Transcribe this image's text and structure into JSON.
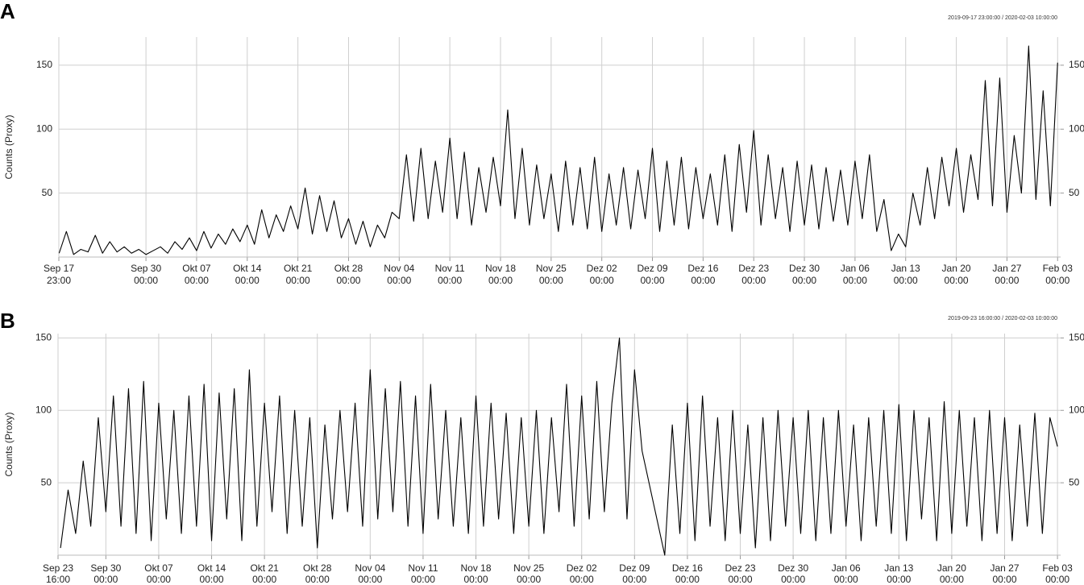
{
  "chart_data": [
    {
      "type": "line",
      "panel": "A",
      "annotation": "2019-09-17 23:00:00 / 2020-02-03 10:00:00",
      "ylabel": "Counts (Proxy)",
      "grid": true,
      "color": "#000000",
      "xlim": [
        "2019-09-17 23:00",
        "2020-02-03 10:00"
      ],
      "xticks": [
        {
          "value": "2019-09-17 23:00",
          "label": [
            "Sep 17",
            "23:00"
          ]
        },
        {
          "value": "2019-09-30 00:00",
          "label": [
            "Sep 30",
            "00:00"
          ]
        },
        {
          "value": "2019-10-07 00:00",
          "label": [
            "Okt 07",
            "00:00"
          ]
        },
        {
          "value": "2019-10-14 00:00",
          "label": [
            "Okt 14",
            "00:00"
          ]
        },
        {
          "value": "2019-10-21 00:00",
          "label": [
            "Okt 21",
            "00:00"
          ]
        },
        {
          "value": "2019-10-28 00:00",
          "label": [
            "Okt 28",
            "00:00"
          ]
        },
        {
          "value": "2019-11-04 00:00",
          "label": [
            "Nov 04",
            "00:00"
          ]
        },
        {
          "value": "2019-11-11 00:00",
          "label": [
            "Nov 11",
            "00:00"
          ]
        },
        {
          "value": "2019-11-18 00:00",
          "label": [
            "Nov 18",
            "00:00"
          ]
        },
        {
          "value": "2019-11-25 00:00",
          "label": [
            "Nov 25",
            "00:00"
          ]
        },
        {
          "value": "2019-12-02 00:00",
          "label": [
            "Dez 02",
            "00:00"
          ]
        },
        {
          "value": "2019-12-09 00:00",
          "label": [
            "Dez 09",
            "00:00"
          ]
        },
        {
          "value": "2019-12-16 00:00",
          "label": [
            "Dez 16",
            "00:00"
          ]
        },
        {
          "value": "2019-12-23 00:00",
          "label": [
            "Dez 23",
            "00:00"
          ]
        },
        {
          "value": "2019-12-30 00:00",
          "label": [
            "Dez 30",
            "00:00"
          ]
        },
        {
          "value": "2020-01-06 00:00",
          "label": [
            "Jan 06",
            "00:00"
          ]
        },
        {
          "value": "2020-01-13 00:00",
          "label": [
            "Jan 13",
            "00:00"
          ]
        },
        {
          "value": "2020-01-20 00:00",
          "label": [
            "Jan 20",
            "00:00"
          ]
        },
        {
          "value": "2020-01-27 00:00",
          "label": [
            "Jan 27",
            "00:00"
          ]
        },
        {
          "value": "2020-02-03 00:00",
          "label": [
            "Feb 03",
            "00:00"
          ]
        }
      ],
      "ylim": [
        0,
        172
      ],
      "yticks": [
        50,
        100,
        150
      ],
      "y2lim": [
        0,
        172
      ],
      "y2ticks": [
        50,
        100,
        150
      ],
      "x": [
        "2019-09-18",
        "2019-09-19",
        "2019-09-20",
        "2019-09-21",
        "2019-09-22",
        "2019-09-23",
        "2019-09-24",
        "2019-09-25",
        "2019-09-26",
        "2019-09-27",
        "2019-09-28",
        "2019-09-29",
        "2019-09-30",
        "2019-10-01",
        "2019-10-02",
        "2019-10-03",
        "2019-10-04",
        "2019-10-05",
        "2019-10-06",
        "2019-10-07",
        "2019-10-08",
        "2019-10-09",
        "2019-10-10",
        "2019-10-11",
        "2019-10-12",
        "2019-10-13",
        "2019-10-14",
        "2019-10-15",
        "2019-10-16",
        "2019-10-17",
        "2019-10-18",
        "2019-10-19",
        "2019-10-20",
        "2019-10-21",
        "2019-10-22",
        "2019-10-23",
        "2019-10-24",
        "2019-10-25",
        "2019-10-26",
        "2019-10-27",
        "2019-10-28",
        "2019-10-29",
        "2019-10-30",
        "2019-10-31",
        "2019-11-01",
        "2019-11-02",
        "2019-11-03",
        "2019-11-04",
        "2019-11-05",
        "2019-11-06",
        "2019-11-07",
        "2019-11-08",
        "2019-11-09",
        "2019-11-10",
        "2019-11-11",
        "2019-11-12",
        "2019-11-13",
        "2019-11-14",
        "2019-11-15",
        "2019-11-16",
        "2019-11-17",
        "2019-11-18",
        "2019-11-19",
        "2019-11-20",
        "2019-11-21",
        "2019-11-22",
        "2019-11-23",
        "2019-11-24",
        "2019-11-25",
        "2019-11-26",
        "2019-11-27",
        "2019-11-28",
        "2019-11-29",
        "2019-11-30",
        "2019-12-01",
        "2019-12-02",
        "2019-12-03",
        "2019-12-04",
        "2019-12-05",
        "2019-12-06",
        "2019-12-07",
        "2019-12-08",
        "2019-12-09",
        "2019-12-10",
        "2019-12-11",
        "2019-12-12",
        "2019-12-13",
        "2019-12-14",
        "2019-12-15",
        "2019-12-16",
        "2019-12-17",
        "2019-12-18",
        "2019-12-19",
        "2019-12-20",
        "2019-12-21",
        "2019-12-22",
        "2019-12-23",
        "2019-12-24",
        "2019-12-25",
        "2019-12-26",
        "2019-12-27",
        "2019-12-28",
        "2019-12-29",
        "2019-12-30",
        "2019-12-31",
        "2020-01-01",
        "2020-01-02",
        "2020-01-03",
        "2020-01-04",
        "2020-01-05",
        "2020-01-06",
        "2020-01-07",
        "2020-01-08",
        "2020-01-09",
        "2020-01-10",
        "2020-01-11",
        "2020-01-12",
        "2020-01-13",
        "2020-01-14",
        "2020-01-15",
        "2020-01-16",
        "2020-01-17",
        "2020-01-18",
        "2020-01-19",
        "2020-01-20",
        "2020-01-21",
        "2020-01-22",
        "2020-01-23",
        "2020-01-24",
        "2020-01-25",
        "2020-01-26",
        "2020-01-27",
        "2020-01-28",
        "2020-01-29",
        "2020-01-30",
        "2020-01-31",
        "2020-02-01",
        "2020-02-02",
        "2020-02-03"
      ],
      "values": [
        3,
        20,
        2,
        6,
        4,
        17,
        3,
        12,
        4,
        8,
        3,
        6,
        2,
        5,
        8,
        3,
        12,
        6,
        15,
        5,
        20,
        7,
        18,
        10,
        22,
        12,
        25,
        10,
        37,
        15,
        33,
        20,
        40,
        22,
        54,
        18,
        48,
        20,
        44,
        15,
        30,
        10,
        28,
        8,
        25,
        15,
        35,
        30,
        80,
        28,
        85,
        30,
        75,
        35,
        93,
        30,
        82,
        25,
        70,
        35,
        78,
        40,
        115,
        30,
        85,
        25,
        72,
        30,
        65,
        20,
        75,
        25,
        70,
        22,
        78,
        20,
        65,
        25,
        70,
        22,
        68,
        30,
        85,
        20,
        75,
        25,
        78,
        22,
        70,
        30,
        65,
        25,
        80,
        20,
        88,
        35,
        99,
        25,
        80,
        30,
        70,
        20,
        75,
        25,
        72,
        22,
        70,
        28,
        68,
        25,
        75,
        30,
        80,
        20,
        45,
        5,
        18,
        8,
        50,
        25,
        70,
        30,
        78,
        40,
        85,
        35,
        80,
        45,
        138,
        40,
        140,
        35,
        95,
        50,
        165,
        45,
        130,
        40,
        152
      ]
    },
    {
      "type": "line",
      "panel": "B",
      "annotation": "2019-09-23 16:00:00 / 2020-02-03 10:00:00",
      "ylabel": "Counts (Proxy)",
      "grid": true,
      "color": "#000000",
      "xlim": [
        "2019-09-23 16:00",
        "2020-02-03 10:00"
      ],
      "xticks": [
        {
          "value": "2019-09-23 16:00",
          "label": [
            "Sep 23",
            "16:00"
          ]
        },
        {
          "value": "2019-09-30 00:00",
          "label": [
            "Sep 30",
            "00:00"
          ]
        },
        {
          "value": "2019-10-07 00:00",
          "label": [
            "Okt 07",
            "00:00"
          ]
        },
        {
          "value": "2019-10-14 00:00",
          "label": [
            "Okt 14",
            "00:00"
          ]
        },
        {
          "value": "2019-10-21 00:00",
          "label": [
            "Okt 21",
            "00:00"
          ]
        },
        {
          "value": "2019-10-28 00:00",
          "label": [
            "Okt 28",
            "00:00"
          ]
        },
        {
          "value": "2019-11-04 00:00",
          "label": [
            "Nov 04",
            "00:00"
          ]
        },
        {
          "value": "2019-11-11 00:00",
          "label": [
            "Nov 11",
            "00:00"
          ]
        },
        {
          "value": "2019-11-18 00:00",
          "label": [
            "Nov 18",
            "00:00"
          ]
        },
        {
          "value": "2019-11-25 00:00",
          "label": [
            "Nov 25",
            "00:00"
          ]
        },
        {
          "value": "2019-12-02 00:00",
          "label": [
            "Dez 02",
            "00:00"
          ]
        },
        {
          "value": "2019-12-09 00:00",
          "label": [
            "Dez 09",
            "00:00"
          ]
        },
        {
          "value": "2019-12-16 00:00",
          "label": [
            "Dez 16",
            "00:00"
          ]
        },
        {
          "value": "2019-12-23 00:00",
          "label": [
            "Dez 23",
            "00:00"
          ]
        },
        {
          "value": "2019-12-30 00:00",
          "label": [
            "Dez 30",
            "00:00"
          ]
        },
        {
          "value": "2020-01-06 00:00",
          "label": [
            "Jan 06",
            "00:00"
          ]
        },
        {
          "value": "2020-01-13 00:00",
          "label": [
            "Jan 13",
            "00:00"
          ]
        },
        {
          "value": "2020-01-20 00:00",
          "label": [
            "Jan 20",
            "00:00"
          ]
        },
        {
          "value": "2020-01-27 00:00",
          "label": [
            "Jan 27",
            "00:00"
          ]
        },
        {
          "value": "2020-02-03 00:00",
          "label": [
            "Feb 03",
            "00:00"
          ]
        }
      ],
      "ylim": [
        0,
        153
      ],
      "yticks": [
        50,
        100,
        150
      ],
      "y2lim": [
        0,
        153
      ],
      "y2ticks": [
        50,
        100,
        150
      ],
      "x": [
        "2019-09-24",
        "2019-09-25",
        "2019-09-26",
        "2019-09-27",
        "2019-09-28",
        "2019-09-29",
        "2019-09-30",
        "2019-10-01",
        "2019-10-02",
        "2019-10-03",
        "2019-10-04",
        "2019-10-05",
        "2019-10-06",
        "2019-10-07",
        "2019-10-08",
        "2019-10-09",
        "2019-10-10",
        "2019-10-11",
        "2019-10-12",
        "2019-10-13",
        "2019-10-14",
        "2019-10-15",
        "2019-10-16",
        "2019-10-17",
        "2019-10-18",
        "2019-10-19",
        "2019-10-20",
        "2019-10-21",
        "2019-10-22",
        "2019-10-23",
        "2019-10-24",
        "2019-10-25",
        "2019-10-26",
        "2019-10-27",
        "2019-10-28",
        "2019-10-29",
        "2019-10-30",
        "2019-10-31",
        "2019-11-01",
        "2019-11-02",
        "2019-11-03",
        "2019-11-04",
        "2019-11-05",
        "2019-11-06",
        "2019-11-07",
        "2019-11-08",
        "2019-11-09",
        "2019-11-10",
        "2019-11-11",
        "2019-11-12",
        "2019-11-13",
        "2019-11-14",
        "2019-11-15",
        "2019-11-16",
        "2019-11-17",
        "2019-11-18",
        "2019-11-19",
        "2019-11-20",
        "2019-11-21",
        "2019-11-22",
        "2019-11-23",
        "2019-11-24",
        "2019-11-25",
        "2019-11-26",
        "2019-11-27",
        "2019-11-28",
        "2019-11-29",
        "2019-11-30",
        "2019-12-01",
        "2019-12-02",
        "2019-12-03",
        "2019-12-04",
        "2019-12-05",
        "2019-12-06",
        "2019-12-07",
        "2019-12-08",
        "2019-12-09",
        "2019-12-10",
        "2019-12-13",
        "2019-12-14",
        "2019-12-15",
        "2019-12-16",
        "2019-12-17",
        "2019-12-18",
        "2019-12-19",
        "2019-12-20",
        "2019-12-21",
        "2019-12-22",
        "2019-12-23",
        "2019-12-24",
        "2019-12-25",
        "2019-12-26",
        "2019-12-27",
        "2019-12-28",
        "2019-12-29",
        "2019-12-30",
        "2019-12-31",
        "2020-01-01",
        "2020-01-02",
        "2020-01-03",
        "2020-01-04",
        "2020-01-05",
        "2020-01-06",
        "2020-01-07",
        "2020-01-08",
        "2020-01-09",
        "2020-01-10",
        "2020-01-11",
        "2020-01-12",
        "2020-01-13",
        "2020-01-14",
        "2020-01-15",
        "2020-01-16",
        "2020-01-17",
        "2020-01-18",
        "2020-01-19",
        "2020-01-20",
        "2020-01-21",
        "2020-01-22",
        "2020-01-23",
        "2020-01-24",
        "2020-01-25",
        "2020-01-26",
        "2020-01-27",
        "2020-01-28",
        "2020-01-29",
        "2020-01-30",
        "2020-01-31",
        "2020-02-01",
        "2020-02-02",
        "2020-02-03"
      ],
      "values": [
        5,
        45,
        15,
        65,
        20,
        95,
        30,
        110,
        20,
        115,
        15,
        120,
        10,
        105,
        25,
        100,
        15,
        110,
        20,
        118,
        10,
        112,
        25,
        115,
        10,
        128,
        20,
        105,
        30,
        110,
        15,
        100,
        20,
        95,
        5,
        90,
        25,
        100,
        30,
        105,
        20,
        128,
        25,
        115,
        30,
        120,
        20,
        110,
        15,
        118,
        25,
        100,
        20,
        95,
        15,
        110,
        20,
        105,
        25,
        98,
        15,
        95,
        20,
        100,
        15,
        95,
        30,
        118,
        20,
        110,
        25,
        120,
        30,
        105,
        150,
        25,
        128,
        72,
        0,
        90,
        15,
        105,
        10,
        110,
        20,
        95,
        10,
        100,
        15,
        90,
        5,
        95,
        10,
        100,
        20,
        95,
        15,
        100,
        10,
        95,
        15,
        100,
        20,
        90,
        10,
        95,
        20,
        100,
        15,
        104,
        10,
        100,
        25,
        95,
        10,
        106,
        15,
        100,
        20,
        95,
        10,
        100,
        15,
        95,
        10,
        90,
        20,
        98,
        15,
        95,
        75
      ]
    }
  ]
}
